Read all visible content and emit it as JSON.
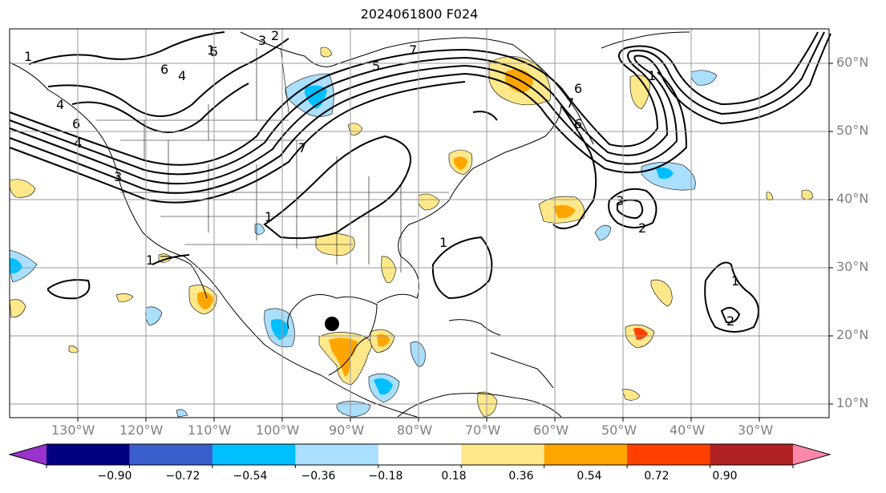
{
  "title": "2024061800 F024",
  "lon_labels": [
    "130°W",
    "120°W",
    "110°W",
    "100°W",
    "90°W",
    "80°W",
    "70°W",
    "60°W",
    "50°W",
    "40°W",
    "30°W"
  ],
  "lat_labels": [
    "60°N",
    "50°N",
    "40°N",
    "30°N",
    "20°N",
    "10°N"
  ],
  "contour_labels": [
    "1",
    "6",
    "4",
    "3",
    "2",
    "1",
    "5",
    "6",
    "1",
    "4",
    "7",
    "4",
    "3",
    "6",
    "5",
    "7",
    "7",
    "6",
    "1",
    "1",
    "1",
    "3",
    "2",
    "1",
    "2"
  ],
  "colorbar": {
    "ticks": [
      "−0.90",
      "−0.72",
      "−0.54",
      "−0.36",
      "−0.18",
      "0.18",
      "0.36",
      "0.54",
      "0.72",
      "0.90"
    ],
    "colors": [
      "#9933cc",
      "#000080",
      "#3a5fcd",
      "#00bfff",
      "#aadfff",
      "#ffffff",
      "#ffe88a",
      "#ffa500",
      "#ff4000",
      "#b22222",
      "#ff88aa"
    ],
    "extend": "both"
  },
  "marker": {
    "label": "",
    "lon": -93.5,
    "lat": 21.8
  }
}
